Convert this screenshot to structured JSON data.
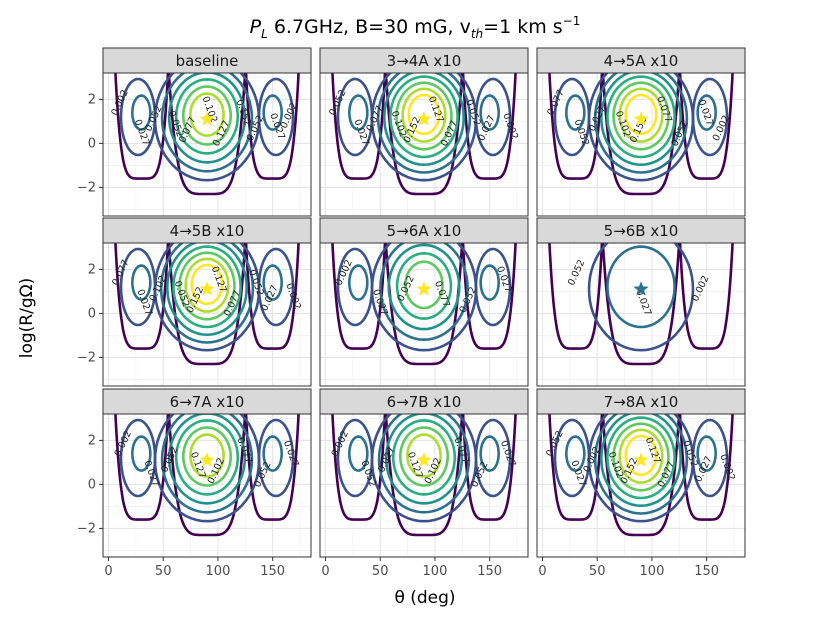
{
  "chart_data": {
    "type": "contour",
    "title": {
      "prefix": "P",
      "prefix_sub": "L",
      "middle": " 6.7GHz, B=30 mG, v",
      "v_sub": "th",
      "suffix": "=1 km s",
      "suffix_sup": "−1"
    },
    "xlabel": "θ (deg)",
    "ylabel": "log(R/gΩ)",
    "xlim": [
      -5,
      185
    ],
    "ylim": [
      -3.3,
      3.2
    ],
    "xticks": [
      0,
      50,
      100,
      150
    ],
    "yticks": [
      -2,
      0,
      2
    ],
    "xtick_labels": [
      "0",
      "50",
      "100",
      "150"
    ],
    "ytick_labels": [
      "−2",
      "0",
      "2"
    ],
    "contour_levels": [
      "0.002",
      "0.027",
      "0.052",
      "0.077",
      "0.102",
      "0.127",
      "0.152"
    ],
    "level_colors": [
      "#440154",
      "#3b528b",
      "#2c728e",
      "#21918c",
      "#28ae80",
      "#5ec962",
      "#addc30",
      "#fde725"
    ],
    "peak": {
      "theta": 90,
      "logR": 1.1
    },
    "panels": [
      {
        "label": "baseline",
        "levels": 6,
        "clabels": [
          "0.002",
          "0.027",
          "0.052",
          "0.052",
          "0.077",
          "0.102",
          "0.127",
          "0.152",
          "0.052",
          "0.027",
          "0.002"
        ]
      },
      {
        "label": "3→4A x10",
        "levels": 7,
        "clabels": [
          "0.052",
          "0.027",
          "0.077",
          "0.102",
          "0.152",
          "0.127",
          "0.077",
          "0.052",
          "0.027",
          "0.002"
        ]
      },
      {
        "label": "4→5A x10",
        "levels": 7,
        "clabels": [
          "0.077",
          "0.052",
          "0.027",
          "0.102",
          "0.152",
          "0.077",
          "0.052",
          "0.027",
          "0.002"
        ]
      },
      {
        "label": "4→5B x10",
        "levels": 7,
        "clabels": [
          "0.077",
          "0.027",
          "0.102",
          "0.052",
          "0.152",
          "0.127",
          "0.077",
          "0.052",
          "0.027",
          "0.002"
        ]
      },
      {
        "label": "5→6A x10",
        "levels": 5,
        "clabels": [
          "0.002",
          "0.027",
          "0.052",
          "0.077",
          "0.052",
          "0.027"
        ]
      },
      {
        "label": "5→6B x10",
        "levels": 2,
        "clabels": [
          "0.052",
          "0.027",
          "0.002"
        ]
      },
      {
        "label": "6→7A x10",
        "levels": 6,
        "clabels": [
          "0.002",
          "0.027",
          "0.052",
          "0.127",
          "0.102",
          "0.077",
          "0.052",
          "0.027"
        ]
      },
      {
        "label": "6→7B x10",
        "levels": 6,
        "clabels": [
          "0.002",
          "0.052",
          "0.027",
          "0.127",
          "0.102",
          "0.077",
          "0.052",
          "0.027"
        ]
      },
      {
        "label": "7→8A x10",
        "levels": 7,
        "clabels": [
          "0.052",
          "0.027",
          "0.002",
          "0.102",
          "0.152",
          "0.127",
          "0.077",
          "0.052",
          "0.027",
          "0.002"
        ]
      }
    ]
  }
}
